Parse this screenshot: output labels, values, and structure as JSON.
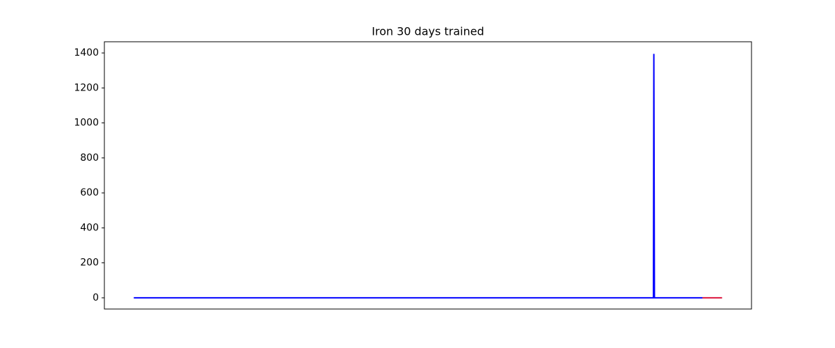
{
  "chart_data": {
    "type": "line",
    "title": "Iron 30 days trained",
    "series": [
      {
        "color": "#0000ff",
        "x": [
          0,
          26.5,
          26.52,
          26.55,
          29
        ],
        "values": [
          0,
          0,
          1395,
          0,
          0
        ]
      },
      {
        "color": "#dc143c",
        "x": [
          29,
          30
        ],
        "values": [
          0,
          0
        ]
      }
    ],
    "xlim": [
      -1.5,
      31.5
    ],
    "ylim": [
      -64,
      1464
    ],
    "yticks": [
      0,
      200,
      400,
      600,
      800,
      1000,
      1200,
      1400
    ],
    "grid": false
  }
}
